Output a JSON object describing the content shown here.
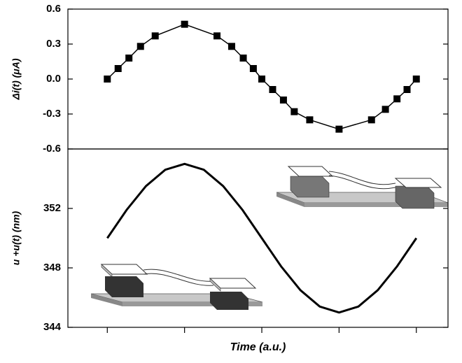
{
  "chart_data": [
    {
      "type": "line",
      "marker": "square",
      "color": "#000000",
      "ylabel": "Δi(t) (μA)",
      "x": [
        0,
        0.14,
        0.28,
        0.43,
        0.62,
        1.0,
        1.42,
        1.61,
        1.76,
        1.89,
        2.0,
        2.14,
        2.28,
        2.42,
        2.62,
        3.0,
        3.42,
        3.6,
        3.75,
        3.88,
        4.0
      ],
      "values": [
        0,
        0.09,
        0.18,
        0.28,
        0.37,
        0.47,
        0.37,
        0.28,
        0.18,
        0.09,
        0,
        -0.09,
        -0.18,
        -0.28,
        -0.35,
        -0.43,
        -0.35,
        -0.26,
        -0.17,
        -0.09,
        0
      ],
      "xlim": [
        -0.51,
        4.41
      ],
      "ylim": [
        -0.6,
        0.6
      ],
      "yticks": [
        -0.6,
        -0.3,
        {
          "value": 0,
          "label": "0.0"
        },
        0.3,
        0.6
      ]
    },
    {
      "type": "line",
      "color": "#000000",
      "ylabel": "u +u(t) (nm)",
      "xlabel": "Time (a.u.)",
      "x": [
        0,
        0.25,
        0.5,
        0.75,
        1,
        1.25,
        1.5,
        1.75,
        2,
        2.25,
        2.5,
        2.75,
        3,
        3.25,
        3.5,
        3.75,
        4
      ],
      "values": [
        350,
        351.9,
        353.5,
        354.6,
        355,
        354.6,
        353.5,
        351.9,
        350,
        348.1,
        346.5,
        345.4,
        345,
        345.4,
        346.5,
        348.1,
        350
      ],
      "xlim": [
        -0.51,
        4.41
      ],
      "xticks": [
        0,
        1,
        2,
        3,
        4
      ],
      "ylim": [
        344,
        356
      ],
      "yticks": [
        344,
        348,
        352
      ]
    }
  ]
}
